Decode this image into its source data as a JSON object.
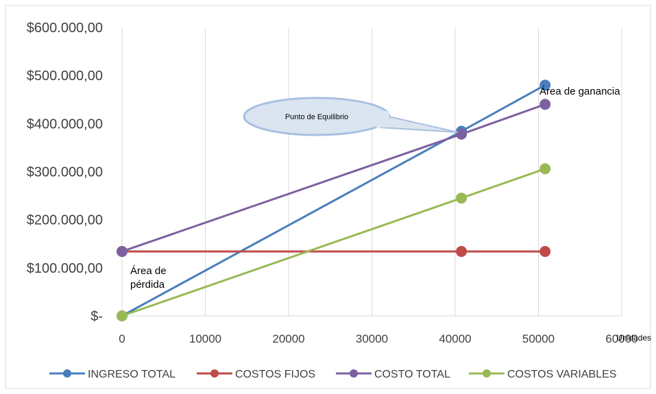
{
  "chart_data": {
    "type": "line",
    "title": "",
    "xlabel": "Unidades",
    "ylabel": "",
    "xlim": [
      0,
      60000
    ],
    "ylim": [
      0,
      600000
    ],
    "x_ticks": [
      "0",
      "10000",
      "20000",
      "30000",
      "40000",
      "50000",
      "60000"
    ],
    "y_ticks": [
      "$-",
      "$100.000,00",
      "$200.000,00",
      "$300.000,00",
      "$400.000,00",
      "$500.000,00",
      "$600.000,00"
    ],
    "grid": "vertical",
    "legend_position": "bottom",
    "series": [
      {
        "name": "INGRESO TOTAL",
        "color": "#4a7ebb",
        "x": [
          0,
          40750,
          50800
        ],
        "y": [
          0,
          384000,
          480000
        ]
      },
      {
        "name": "COSTOS FIJOS",
        "color": "#be4b48",
        "x": [
          0,
          40750,
          50800
        ],
        "y": [
          134000,
          134000,
          134000
        ]
      },
      {
        "name": "COSTO TOTAL",
        "color": "#7d60a0",
        "x": [
          0,
          40750,
          50800
        ],
        "y": [
          134000,
          378000,
          440000
        ]
      },
      {
        "name": "COSTOS VARIABLES",
        "color": "#98b954",
        "x": [
          0,
          40750,
          50800
        ],
        "y": [
          0,
          245000,
          306000
        ]
      }
    ],
    "annotations": {
      "profit_area": "Área de ganancia",
      "loss_area_line1": "Área de",
      "loss_area_line2": "pérdida",
      "breakeven": "Punto de Equilibrio"
    }
  }
}
